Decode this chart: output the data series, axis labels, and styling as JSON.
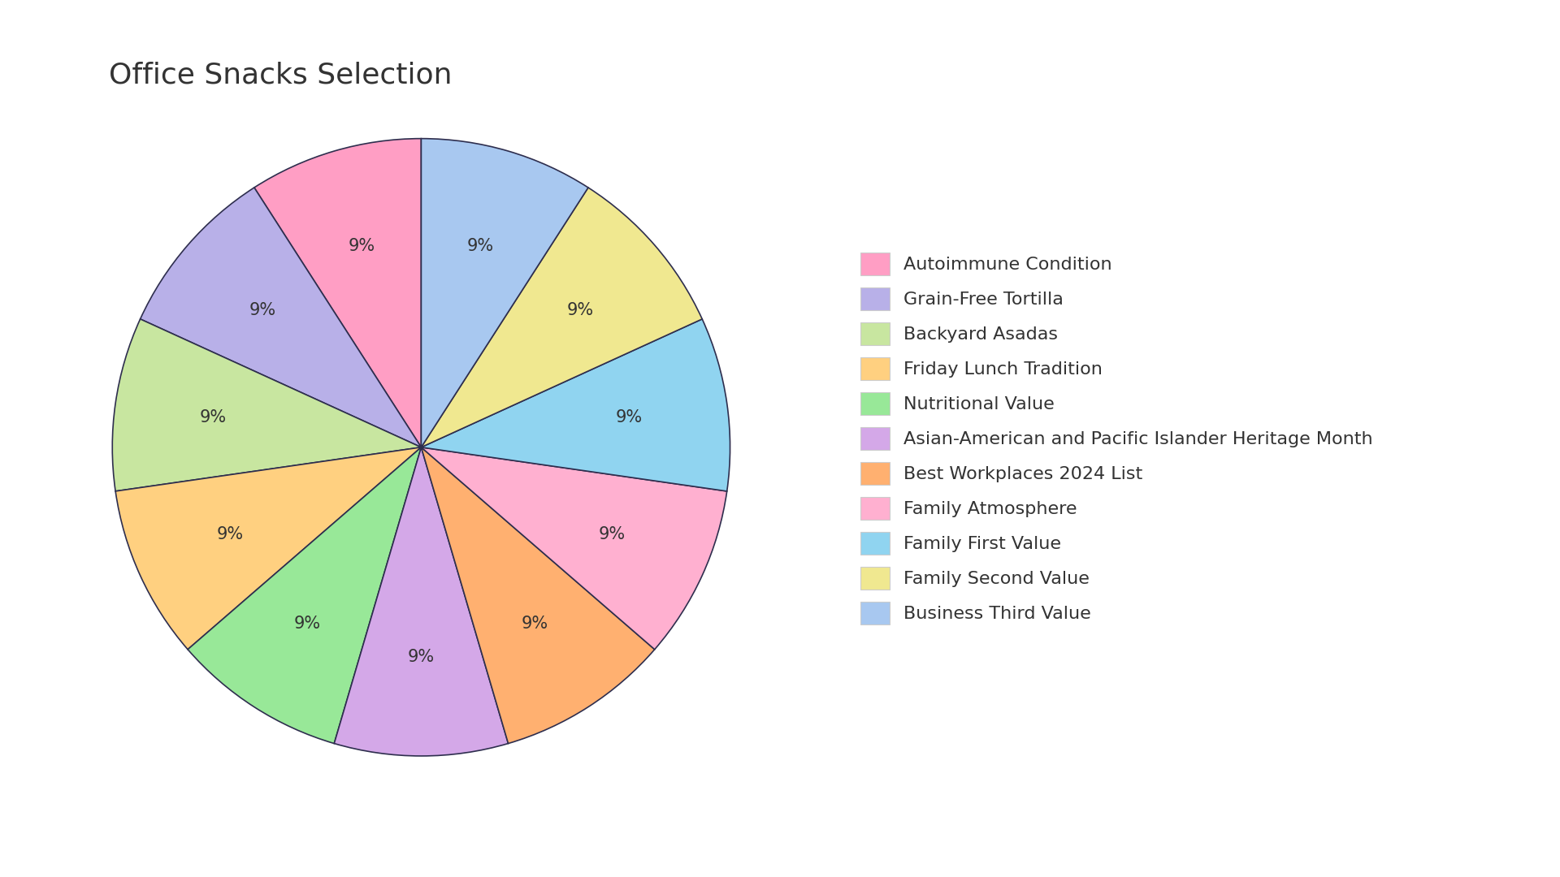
{
  "title": "Office Snacks Selection",
  "labels": [
    "Autoimmune Condition",
    "Grain-Free Tortilla",
    "Backyard Asadas",
    "Friday Lunch Tradition",
    "Nutritional Value",
    "Asian-American and Pacific Islander Heritage Month",
    "Best Workplaces 2024 List",
    "Family Atmosphere",
    "Family First Value",
    "Family Second Value",
    "Business Third Value"
  ],
  "values": [
    9.09,
    9.09,
    9.09,
    9.09,
    9.09,
    9.09,
    9.09,
    9.09,
    9.09,
    9.09,
    9.09
  ],
  "colors": [
    "#FF9EC4",
    "#B8B0E8",
    "#C8E6A0",
    "#FFD080",
    "#98E898",
    "#D4A8E8",
    "#FFB070",
    "#FFB0D0",
    "#90D4F0",
    "#F0E890",
    "#A8C8F0"
  ],
  "startangle": 90,
  "background_color": "#FFFFFF",
  "title_fontsize": 26,
  "legend_fontsize": 16,
  "autopct_fontsize": 15,
  "edge_color": "#2E2E4E",
  "edge_linewidth": 1.2
}
